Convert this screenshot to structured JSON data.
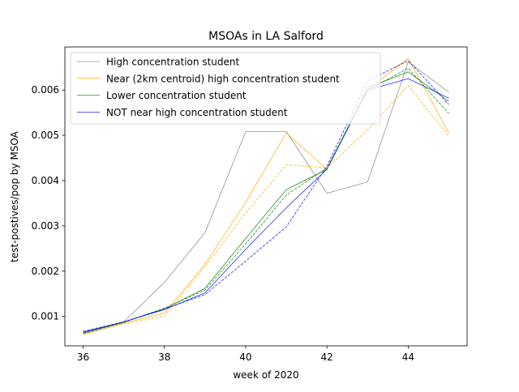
{
  "chart_data": {
    "type": "line",
    "title": "MSOAs in LA Salford",
    "xlabel": "week of 2020",
    "ylabel": "test-postives/pop by MSOA",
    "xlim": [
      35.55,
      45.45
    ],
    "ylim": [
      0.00035,
      0.00695
    ],
    "xticks": [
      36,
      38,
      40,
      42,
      44
    ],
    "yticks": [
      0.001,
      0.002,
      0.003,
      0.004,
      0.005,
      0.006
    ],
    "ytick_labels": [
      "0.001",
      "0.002",
      "0.003",
      "0.004",
      "0.005",
      "0.006"
    ],
    "grid": false,
    "legend_position": "upper-left",
    "x": [
      36,
      37,
      38,
      39,
      40,
      41,
      42,
      43,
      44,
      45
    ],
    "series": [
      {
        "name": "High concentration student",
        "color": "#808080",
        "style": "solid",
        "values": [
          0.00065,
          0.00088,
          0.00175,
          0.00285,
          0.00508,
          0.00508,
          0.00372,
          0.00397,
          0.00662,
          0.00595
        ]
      },
      {
        "name": "Near (2km centroid) high concentration student",
        "color": "#ffa500",
        "style": "solid",
        "values": [
          0.0006,
          0.00085,
          0.00107,
          0.00215,
          0.00352,
          0.00505,
          0.00425,
          0.006,
          0.0067,
          0.00505
        ]
      },
      {
        "name": "Lower concentration student",
        "color": "#008000",
        "style": "solid",
        "values": [
          0.00063,
          0.00087,
          0.00117,
          0.00162,
          0.00272,
          0.0038,
          0.00425,
          0.00605,
          0.0064,
          0.00575
        ]
      },
      {
        "name": "NOT near high concentration student",
        "color": "#0000ff",
        "style": "solid",
        "values": [
          0.00065,
          0.00088,
          0.00115,
          0.00152,
          0.00248,
          0.0034,
          0.00425,
          0.006,
          0.00625,
          0.00582
        ]
      },
      {
        "color": "#ffa500",
        "style": "dashed",
        "values": [
          0.0006,
          0.00084,
          0.001,
          0.0021,
          0.00328,
          0.00435,
          0.00428,
          0.00512,
          0.0061,
          0.00498
        ]
      },
      {
        "color": "#008000",
        "style": "dashed",
        "values": [
          0.00062,
          0.00087,
          0.00118,
          0.00158,
          0.0026,
          0.00368,
          0.00428,
          0.006,
          0.00648,
          0.00548
        ]
      },
      {
        "color": "#0000ff",
        "style": "dashed",
        "values": [
          0.00067,
          0.00088,
          0.00117,
          0.00148,
          0.00222,
          0.00298,
          0.00432,
          0.0062,
          0.00665,
          0.00568
        ]
      }
    ]
  }
}
